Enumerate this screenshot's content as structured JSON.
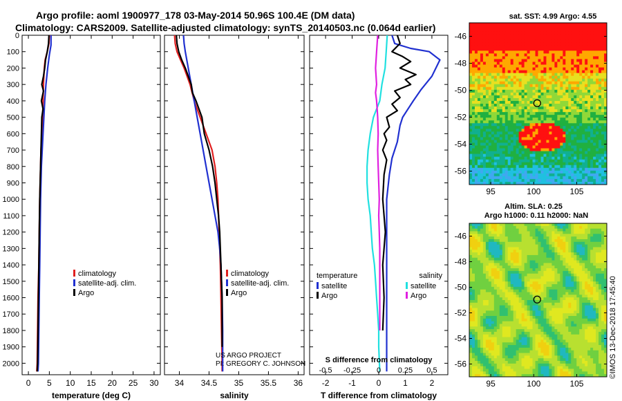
{
  "title": {
    "line1": "Argo profile: aoml 1900977_178 03-May-2014 50.96S 100.4E (DM data)",
    "line2": "Climatology: CARS2009. Satellite-adjusted climatology: synTS_20140503.nc (0.064d earlier)"
  },
  "colors": {
    "climatology": "#e02020",
    "satellite": "#2030d0",
    "argo": "#000000",
    "sat_salinity": "#20e0e0",
    "argo_salinity": "#e020e0"
  },
  "depth_axis": {
    "ticks": [
      0,
      100,
      200,
      300,
      400,
      500,
      600,
      700,
      800,
      900,
      1000,
      1100,
      1200,
      1300,
      1400,
      1500,
      1600,
      1700,
      1800,
      1900,
      2000
    ],
    "range": [
      0,
      2070
    ]
  },
  "chart_data": [
    {
      "type": "line",
      "name": "temperature-panel",
      "xlabel": "temperature (deg C)",
      "xlim": [
        -1.5,
        31.5
      ],
      "xticks": [
        0,
        5,
        10,
        15,
        20,
        25,
        30
      ],
      "legend": [
        "climatology",
        "satellite-adj. clim.",
        "Argo"
      ],
      "series": [
        {
          "name": "climatology",
          "color_key": "climatology",
          "points": [
            [
              5.0,
              0
            ],
            [
              4.9,
              50
            ],
            [
              4.5,
              100
            ],
            [
              4.0,
              150
            ],
            [
              3.8,
              200
            ],
            [
              3.7,
              250
            ],
            [
              3.6,
              300
            ],
            [
              3.5,
              400
            ],
            [
              3.4,
              500
            ],
            [
              3.2,
              600
            ],
            [
              3.0,
              700
            ],
            [
              2.9,
              800
            ],
            [
              2.8,
              900
            ],
            [
              2.7,
              1000
            ],
            [
              2.6,
              1200
            ],
            [
              2.5,
              1400
            ],
            [
              2.3,
              1600
            ],
            [
              2.2,
              1800
            ],
            [
              2.1,
              2000
            ],
            [
              2.0,
              2050
            ]
          ]
        },
        {
          "name": "satellite-adj. clim.",
          "color_key": "satellite",
          "points": [
            [
              5.4,
              0
            ],
            [
              5.4,
              60
            ],
            [
              5.0,
              120
            ],
            [
              4.6,
              200
            ],
            [
              4.2,
              300
            ],
            [
              3.9,
              400
            ],
            [
              3.7,
              500
            ],
            [
              3.5,
              600
            ],
            [
              3.3,
              700
            ],
            [
              3.1,
              800
            ],
            [
              3.0,
              900
            ],
            [
              2.9,
              1000
            ],
            [
              2.8,
              1200
            ],
            [
              2.7,
              1400
            ],
            [
              2.6,
              1600
            ],
            [
              2.5,
              1800
            ],
            [
              2.4,
              2000
            ],
            [
              2.3,
              2050
            ]
          ]
        },
        {
          "name": "Argo",
          "color_key": "argo",
          "points": [
            [
              4.9,
              0
            ],
            [
              4.8,
              50
            ],
            [
              4.5,
              100
            ],
            [
              4.1,
              150
            ],
            [
              3.9,
              200
            ],
            [
              3.6,
              250
            ],
            [
              3.2,
              300
            ],
            [
              3.6,
              340
            ],
            [
              3.1,
              400
            ],
            [
              3.5,
              450
            ],
            [
              3.2,
              500
            ],
            [
              3.1,
              600
            ],
            [
              3.0,
              700
            ],
            [
              2.9,
              800
            ],
            [
              2.8,
              900
            ],
            [
              2.7,
              1000
            ],
            [
              2.6,
              1200
            ],
            [
              2.5,
              1400
            ],
            [
              2.4,
              1600
            ],
            [
              2.3,
              1800
            ],
            [
              2.2,
              2000
            ],
            [
              2.1,
              2050
            ]
          ]
        }
      ]
    },
    {
      "type": "line",
      "name": "salinity-panel",
      "xlabel": "salinity",
      "xlim": [
        33.75,
        36.1
      ],
      "xticks": [
        34,
        34.5,
        35,
        35.5,
        36
      ],
      "xtick_labels": [
        "34",
        "34.5",
        "35",
        "35.5",
        "36"
      ],
      "legend": [
        "climatology",
        "satellite-adj. clim.",
        "Argo"
      ],
      "credit": [
        "US ARGO PROJECT",
        "PI: GREGORY C. JOHNSON"
      ],
      "series": [
        {
          "name": "climatology",
          "color_key": "climatology",
          "points": [
            [
              33.92,
              0
            ],
            [
              33.93,
              50
            ],
            [
              33.96,
              100
            ],
            [
              34.02,
              150
            ],
            [
              34.08,
              200
            ],
            [
              34.13,
              250
            ],
            [
              34.18,
              300
            ],
            [
              34.25,
              400
            ],
            [
              34.35,
              500
            ],
            [
              34.45,
              600
            ],
            [
              34.55,
              700
            ],
            [
              34.6,
              800
            ],
            [
              34.63,
              900
            ],
            [
              34.65,
              1000
            ],
            [
              34.67,
              1200
            ],
            [
              34.69,
              1400
            ],
            [
              34.7,
              1600
            ],
            [
              34.71,
              1800
            ],
            [
              34.72,
              2000
            ],
            [
              34.72,
              2050
            ]
          ]
        },
        {
          "name": "satellite-adj. clim.",
          "color_key": "satellite",
          "points": [
            [
              34.07,
              0
            ],
            [
              34.08,
              50
            ],
            [
              34.1,
              100
            ],
            [
              34.15,
              200
            ],
            [
              34.2,
              300
            ],
            [
              34.25,
              400
            ],
            [
              34.3,
              500
            ],
            [
              34.35,
              600
            ],
            [
              34.4,
              700
            ],
            [
              34.45,
              800
            ],
            [
              34.5,
              900
            ],
            [
              34.55,
              1000
            ],
            [
              34.6,
              1100
            ],
            [
              34.65,
              1200
            ],
            [
              34.68,
              1300
            ],
            [
              34.7,
              1400
            ],
            [
              34.71,
              1500
            ],
            [
              34.72,
              1600
            ],
            [
              34.73,
              1800
            ],
            [
              34.73,
              2000
            ],
            [
              34.73,
              2050
            ]
          ]
        },
        {
          "name": "Argo",
          "color_key": "argo",
          "points": [
            [
              33.95,
              0
            ],
            [
              33.96,
              50
            ],
            [
              33.99,
              100
            ],
            [
              34.04,
              150
            ],
            [
              34.1,
              200
            ],
            [
              34.15,
              250
            ],
            [
              34.2,
              300
            ],
            [
              34.22,
              350
            ],
            [
              34.28,
              400
            ],
            [
              34.33,
              450
            ],
            [
              34.38,
              500
            ],
            [
              34.42,
              600
            ],
            [
              34.5,
              700
            ],
            [
              34.56,
              800
            ],
            [
              34.6,
              900
            ],
            [
              34.63,
              1000
            ],
            [
              34.66,
              1100
            ],
            [
              34.68,
              1200
            ],
            [
              34.69,
              1300
            ],
            [
              34.7,
              1400
            ],
            [
              34.71,
              1500
            ],
            [
              34.72,
              1600
            ],
            [
              34.72,
              1800
            ],
            [
              34.72,
              1900
            ]
          ]
        }
      ]
    },
    {
      "type": "line",
      "name": "difference-panel",
      "xlabel": "T difference from climatology",
      "xlim": [
        -2.6,
        2.6
      ],
      "xticks": [
        -2,
        -1,
        0,
        1,
        2
      ],
      "s_axis_label": "S difference from climatology",
      "s_ticks": [
        -0.5,
        -0.25,
        0,
        0.25,
        0.5
      ],
      "s_tick_labels": [
        "-0.5",
        "-0.25",
        "0",
        "0.25",
        "0.5"
      ],
      "s_xlim": [
        -0.65,
        0.65
      ],
      "legend_temperature_title": "temperature",
      "legend_salinity_title": "salinity",
      "legend_temperature": [
        "satellite",
        "Argo"
      ],
      "legend_salinity": [
        "satellite",
        "Argo"
      ],
      "series": [
        {
          "name": "T satellite",
          "color_key": "satellite",
          "points": [
            [
              0.5,
              0
            ],
            [
              0.6,
              50
            ],
            [
              1.2,
              80
            ],
            [
              1.9,
              100
            ],
            [
              2.3,
              150
            ],
            [
              2.0,
              250
            ],
            [
              1.6,
              330
            ],
            [
              1.3,
              400
            ],
            [
              1.1,
              450
            ],
            [
              0.9,
              500
            ],
            [
              0.8,
              550
            ],
            [
              0.7,
              650
            ],
            [
              0.5,
              750
            ],
            [
              0.4,
              850
            ],
            [
              0.3,
              1000
            ],
            [
              0.3,
              1200
            ],
            [
              0.3,
              1400
            ],
            [
              0.3,
              1600
            ],
            [
              0.3,
              1800
            ],
            [
              0.3,
              2000
            ],
            [
              0.3,
              2050
            ]
          ]
        },
        {
          "name": "T Argo",
          "color_key": "argo",
          "points": [
            [
              0.7,
              0
            ],
            [
              0.8,
              50
            ],
            [
              0.5,
              100
            ],
            [
              0.9,
              130
            ],
            [
              1.2,
              160
            ],
            [
              0.8,
              200
            ],
            [
              1.4,
              240
            ],
            [
              1.0,
              270
            ],
            [
              1.2,
              300
            ],
            [
              0.6,
              340
            ],
            [
              0.8,
              380
            ],
            [
              0.5,
              420
            ],
            [
              0.7,
              460
            ],
            [
              0.3,
              500
            ],
            [
              0.4,
              560
            ],
            [
              0.2,
              600
            ],
            [
              0.3,
              640
            ],
            [
              0.15,
              700
            ],
            [
              0.3,
              760
            ],
            [
              0.2,
              850
            ],
            [
              0.15,
              1000
            ],
            [
              0.25,
              1200
            ],
            [
              0.15,
              1400
            ],
            [
              0.2,
              1600
            ],
            [
              0.15,
              1800
            ]
          ]
        },
        {
          "name": "S satellite",
          "color_key": "sat_salinity",
          "s_points": [
            [
              0.08,
              0
            ],
            [
              0.07,
              100
            ],
            [
              0.06,
              200
            ],
            [
              0.03,
              300
            ],
            [
              0.01,
              400
            ],
            [
              -0.05,
              500
            ],
            [
              -0.08,
              600
            ],
            [
              -0.1,
              700
            ],
            [
              -0.11,
              800
            ],
            [
              -0.11,
              900
            ],
            [
              -0.1,
              1000
            ],
            [
              -0.08,
              1100
            ],
            [
              -0.07,
              1200
            ],
            [
              -0.06,
              1300
            ],
            [
              -0.04,
              1400
            ],
            [
              -0.03,
              1500
            ],
            [
              -0.02,
              1600
            ],
            [
              -0.01,
              1700
            ],
            [
              0.0,
              1800
            ],
            [
              0.0,
              1900
            ],
            [
              0.01,
              2050
            ]
          ]
        },
        {
          "name": "S Argo",
          "color_key": "argo_salinity",
          "s_points": [
            [
              -0.01,
              0
            ],
            [
              -0.02,
              100
            ],
            [
              -0.03,
              200
            ],
            [
              -0.02,
              300
            ],
            [
              -0.03,
              350
            ],
            [
              -0.02,
              400
            ],
            [
              -0.01,
              500
            ],
            [
              -0.005,
              600
            ],
            [
              -0.01,
              700
            ],
            [
              -0.005,
              800
            ],
            [
              0.0,
              900
            ],
            [
              0.005,
              1000
            ],
            [
              0.0,
              1100
            ],
            [
              0.005,
              1200
            ],
            [
              0.01,
              1300
            ],
            [
              0.01,
              1400
            ],
            [
              0.01,
              1500
            ],
            [
              0.01,
              1600
            ],
            [
              0.01,
              1700
            ],
            [
              0.01,
              1800
            ]
          ]
        }
      ]
    },
    {
      "type": "heatmap",
      "name": "sst-map",
      "title": "sat. SST: 4.99 Argo: 4.55",
      "xlim": [
        92.5,
        108.5
      ],
      "ylim": [
        -57,
        -45
      ],
      "xticks": [
        95,
        100,
        105
      ],
      "yticks": [
        -46,
        -48,
        -50,
        -52,
        -54,
        -56
      ],
      "marker": [
        100.4,
        -50.96
      ]
    },
    {
      "type": "heatmap",
      "name": "sla-map",
      "title_line1": "Altim. SLA: 0.25",
      "title_line2": "Argo h1000: 0.11 h2000: NaN",
      "xlim": [
        92.5,
        108.5
      ],
      "ylim": [
        -57,
        -45
      ],
      "xticks": [
        95,
        100,
        105
      ],
      "yticks": [
        -46,
        -48,
        -50,
        -52,
        -54,
        -56
      ],
      "marker": [
        100.4,
        -50.96
      ]
    }
  ],
  "watermark": "©IMOS 13-Dec-2018 17:45:40"
}
